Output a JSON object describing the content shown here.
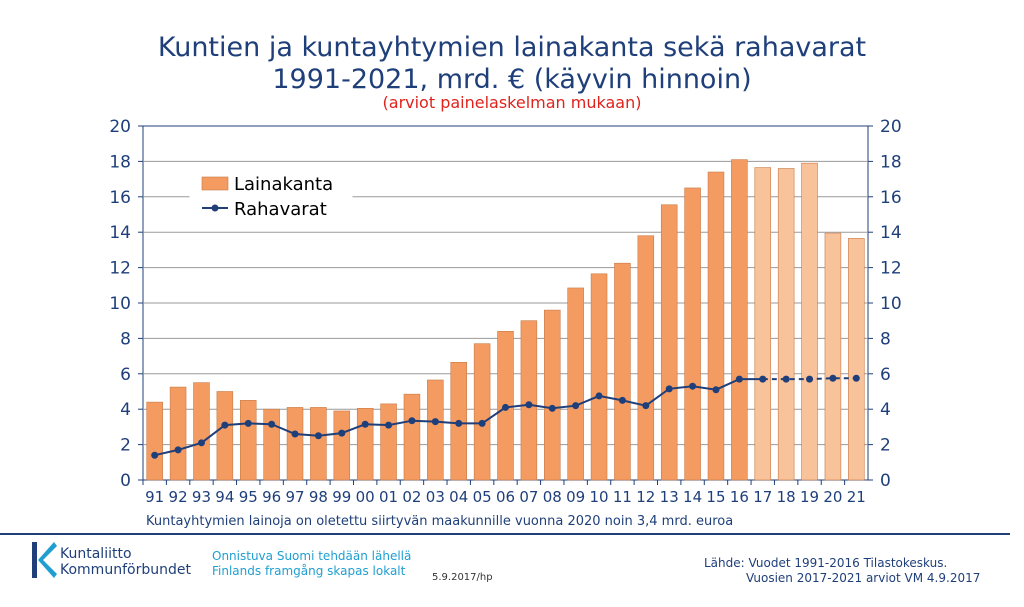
{
  "header": {
    "title_line1": "Kuntien ja kuntayhtymien lainakanta sekä rahavarat",
    "title_line2": "1991-2021, mrd. € (käyvin hinnoin)",
    "subtitle": "(arviot painelaskelman mukaan)"
  },
  "chart_data": {
    "type": "bar",
    "categories": [
      "91",
      "92",
      "93",
      "94",
      "95",
      "96",
      "97",
      "98",
      "99",
      "00",
      "01",
      "02",
      "03",
      "04",
      "05",
      "06",
      "07",
      "08",
      "09",
      "10",
      "11",
      "12",
      "13",
      "14",
      "15",
      "16",
      "17",
      "18",
      "19",
      "20",
      "21"
    ],
    "series": [
      {
        "name": "Lainakanta",
        "type": "bar",
        "values": [
          4.4,
          5.25,
          5.5,
          5.0,
          4.5,
          4.0,
          4.1,
          4.1,
          3.9,
          4.05,
          4.3,
          4.85,
          5.65,
          6.65,
          7.7,
          8.4,
          9.0,
          9.6,
          10.85,
          11.65,
          12.25,
          13.8,
          15.55,
          16.5,
          17.4,
          18.1,
          17.65,
          17.6,
          17.9,
          13.95,
          13.65
        ],
        "color": "#f49b61",
        "estimate_color": "#f8c29b"
      },
      {
        "name": "Rahavarat",
        "type": "line",
        "values": [
          1.4,
          1.7,
          2.1,
          3.1,
          3.2,
          3.15,
          2.6,
          2.5,
          2.65,
          3.15,
          3.1,
          3.35,
          3.3,
          3.2,
          3.2,
          4.1,
          4.25,
          4.05,
          4.2,
          4.75,
          4.5,
          4.2,
          5.15,
          5.3,
          5.1,
          5.7,
          5.7,
          5.7,
          5.7,
          5.75,
          5.75
        ],
        "color": "#1f3f7a"
      }
    ],
    "estimate_from_category": "17",
    "y_ticks": [
      "0",
      "2",
      "4",
      "6",
      "8",
      "10",
      "12",
      "14",
      "16",
      "18",
      "20"
    ],
    "ylim": [
      0,
      20
    ],
    "y_axis_right": true,
    "grid": true,
    "legend_position": "top-left"
  },
  "footer": {
    "note": "Kuntayhtymien lainoja on oletettu siirtyvän maakunnille vuonna 2020 noin 3,4 mrd. euroa",
    "logo_line1": "Kuntaliitto",
    "logo_line2": "Kommunförbundet",
    "slogan_line1": "Onnistuva Suomi tehdään lähellä",
    "slogan_line2": "Finlands framgång skapas lokalt",
    "date": "5.9.2017/hp",
    "source_line1": "Lähde: Vuodet 1991-2016 Tilastokeskus.",
    "source_line2": "Vuosien 2017-2021 arviot VM 4.9.2017"
  }
}
